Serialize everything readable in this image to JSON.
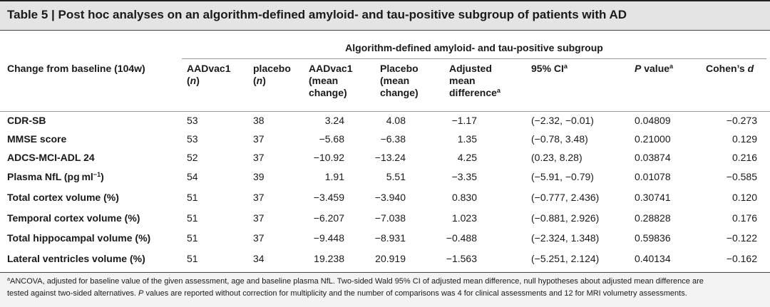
{
  "title": "Table 5 | Post hoc analyses on an algorithm-defined amyloid- and tau-positive subgroup of patients with AD",
  "subgroup": "Algorithm-defined amyloid- and tau-positive subgroup",
  "columns": [
    [
      [
        {
          "t": "Change from baseline (104w)"
        }
      ]
    ],
    [
      [
        {
          "t": "AADvac1"
        }
      ],
      [
        {
          "t": "("
        },
        {
          "t": "n",
          "i": true
        },
        {
          "t": ")"
        }
      ]
    ],
    [
      [
        {
          "t": "placebo"
        }
      ],
      [
        {
          "t": "("
        },
        {
          "t": "n",
          "i": true
        },
        {
          "t": ")"
        }
      ]
    ],
    [
      [
        {
          "t": "AADvac1"
        }
      ],
      [
        {
          "t": "(mean"
        }
      ],
      [
        {
          "t": "change)"
        }
      ]
    ],
    [
      [
        {
          "t": "Placebo"
        }
      ],
      [
        {
          "t": "(mean"
        }
      ],
      [
        {
          "t": "change)"
        }
      ]
    ],
    [
      [
        {
          "t": "Adjusted"
        }
      ],
      [
        {
          "t": "mean"
        }
      ],
      [
        {
          "t": "difference"
        },
        {
          "t": "a",
          "s": true
        }
      ]
    ],
    [
      [
        {
          "t": "95% CI"
        },
        {
          "t": "a",
          "s": true
        }
      ]
    ],
    [
      [
        {
          "t": "P",
          "i": true
        },
        {
          "t": " value"
        },
        {
          "t": "a",
          "s": true
        }
      ]
    ],
    [
      [
        {
          "t": "Cohen’s "
        },
        {
          "t": "d",
          "i": true
        }
      ]
    ]
  ],
  "rows": [
    {
      "label": [
        {
          "t": "CDR-SB"
        }
      ],
      "cells": [
        "53",
        "38",
        "3.24",
        "4.08",
        "−1.17",
        "(−2.32, −0.01)",
        "0.04809",
        "−0.273"
      ]
    },
    {
      "label": [
        {
          "t": "MMSE score"
        }
      ],
      "cells": [
        "53",
        "37",
        "−5.68",
        "−6.38",
        "1.35",
        "(−0.78, 3.48)",
        "0.21000",
        "0.129"
      ]
    },
    {
      "label": [
        {
          "t": "ADCS-MCI-ADL 24"
        }
      ],
      "cells": [
        "52",
        "37",
        "−10.92",
        "−13.24",
        "4.25",
        "(0.23, 8.28)",
        "0.03874",
        "0.216"
      ]
    },
    {
      "label": [
        {
          "t": "Plasma NfL (pg ml"
        },
        {
          "t": "−1",
          "s": true
        },
        {
          "t": ")"
        }
      ],
      "cells": [
        "54",
        "39",
        "1.91",
        "5.51",
        "−3.35",
        "(−5.91, −0.79)",
        "0.01078",
        "−0.585"
      ]
    },
    {
      "label": [
        {
          "t": "Total cortex volume (%)"
        }
      ],
      "cells": [
        "51",
        "37",
        "−3.459",
        "−3.940",
        "0.830",
        "(−0.777, 2.436)",
        "0.30741",
        "0.120"
      ]
    },
    {
      "label": [
        {
          "t": "Temporal cortex volume (%)"
        }
      ],
      "cells": [
        "51",
        "37",
        "−6.207",
        "−7.038",
        "1.023",
        "(−0.881, 2.926)",
        "0.28828",
        "0.176"
      ]
    },
    {
      "label": [
        {
          "t": "Total hippocampal volume (%)"
        }
      ],
      "cells": [
        "51",
        "37",
        "−9.448",
        "−8.931",
        "−0.488",
        "(−2.324, 1.348)",
        "0.59836",
        "−0.122"
      ]
    },
    {
      "label": [
        {
          "t": "Lateral ventricles volume (%)"
        }
      ],
      "cells": [
        "51",
        "34",
        "19.238",
        "20.919",
        "−1.563",
        "(−5.251, 2.124)",
        "0.40134",
        "−0.162"
      ]
    }
  ],
  "footnote": [
    [
      {
        "t": "a",
        "s": true
      },
      {
        "t": "ANCOVA, adjusted for baseline value of the given assessment, age and baseline plasma NfL. Two-sided Wald 95% CI of adjusted mean difference, null hypotheses about adjusted mean difference are"
      }
    ],
    [
      {
        "t": "tested against two-sided alternatives. "
      },
      {
        "t": "P",
        "i": true
      },
      {
        "t": " values are reported without correction for multiplicity and the number of comparisons was 4 for clinical assessments and 12 for MRI volumetry assessments."
      }
    ]
  ]
}
